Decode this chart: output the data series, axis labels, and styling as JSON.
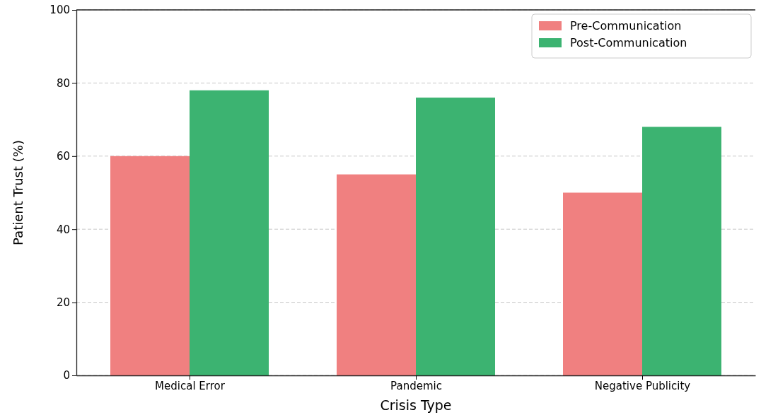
{
  "chart_data": {
    "type": "bar",
    "xlabel": "Crisis Type",
    "ylabel": "Patient Trust (%)",
    "categories": [
      "Medical Error",
      "Pandemic",
      "Negative Publicity"
    ],
    "series": [
      {
        "name": "Pre-Communication",
        "color": "#f08080",
        "values": [
          60,
          55,
          50
        ]
      },
      {
        "name": "Post-Communication",
        "color": "#3cb371",
        "values": [
          78,
          76,
          68
        ]
      }
    ],
    "ylim": [
      0,
      100
    ],
    "yticks": [
      0,
      20,
      40,
      60,
      80,
      100
    ],
    "grid": "y",
    "legend": "top right"
  }
}
